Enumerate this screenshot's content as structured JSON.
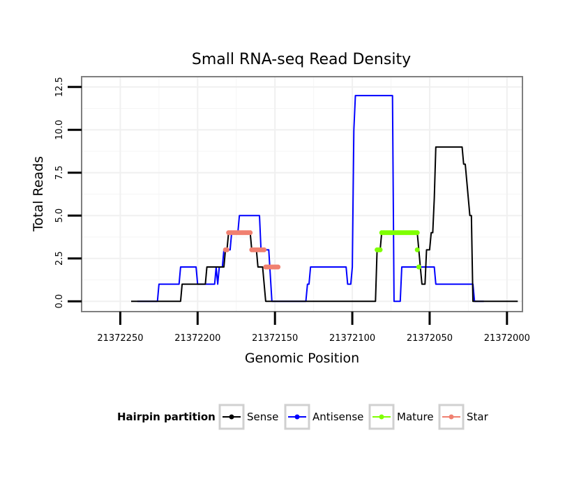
{
  "chart_data": {
    "type": "line",
    "title": "Small RNA-seq Read Density",
    "xlabel": "Genomic Position",
    "ylabel": "Total Reads",
    "x_reversed": true,
    "xlim": [
      21372275,
      21371990
    ],
    "ylim": [
      -0.6,
      13.1
    ],
    "x_ticks": [
      {
        "value": 21372250,
        "label": "21372250"
      },
      {
        "value": 21372200,
        "label": "21372200"
      },
      {
        "value": 21372150,
        "label": "21372150"
      },
      {
        "value": 21372100,
        "label": "21372100"
      },
      {
        "value": 21372050,
        "label": "21372050"
      },
      {
        "value": 21372000,
        "label": "21372000"
      }
    ],
    "y_ticks": [
      {
        "value": 0,
        "label": "0.0"
      },
      {
        "value": 2.5,
        "label": "2.5"
      },
      {
        "value": 5,
        "label": "5.0"
      },
      {
        "value": 7.5,
        "label": "7.5"
      },
      {
        "value": 10,
        "label": "10.0"
      },
      {
        "value": 12.5,
        "label": "12.5"
      }
    ],
    "grid": true,
    "legend": {
      "title": "Hairpin partition",
      "position": "bottom",
      "entries": [
        {
          "name": "Sense",
          "color": "#000000"
        },
        {
          "name": "Antisense",
          "color": "#0000FF"
        },
        {
          "name": "Mature",
          "color": "#7FFF00"
        },
        {
          "name": "Star",
          "color": "#F08070"
        }
      ]
    },
    "series": [
      {
        "name": "Antisense",
        "color": "#0000FF",
        "style": "line",
        "points": [
          [
            21372239,
            0
          ],
          [
            21372226,
            0
          ],
          [
            21372225,
            1
          ],
          [
            21372212,
            1
          ],
          [
            21372211,
            2
          ],
          [
            21372201,
            2
          ],
          [
            21372200,
            1
          ],
          [
            21372189,
            1
          ],
          [
            21372188,
            2
          ],
          [
            21372187,
            1
          ],
          [
            21372186,
            2
          ],
          [
            21372184,
            2
          ],
          [
            21372183,
            3
          ],
          [
            21372179,
            3
          ],
          [
            21372178,
            4
          ],
          [
            21372174,
            4
          ],
          [
            21372173,
            5
          ],
          [
            21372160,
            5
          ],
          [
            21372159,
            3
          ],
          [
            21372154,
            3
          ],
          [
            21372152,
            0
          ],
          [
            21372130,
            0
          ],
          [
            21372129,
            1
          ],
          [
            21372128,
            1
          ],
          [
            21372127,
            2
          ],
          [
            21372104,
            2
          ],
          [
            21372103,
            1
          ],
          [
            21372101,
            1
          ],
          [
            21372100,
            2
          ],
          [
            21372099,
            10
          ],
          [
            21372098,
            12
          ],
          [
            21372074,
            12
          ],
          [
            21372073,
            0
          ],
          [
            21372069,
            0
          ],
          [
            21372068,
            2
          ],
          [
            21372047,
            2
          ],
          [
            21372046,
            1
          ],
          [
            21372022,
            1
          ],
          [
            21372021,
            0
          ],
          [
            21372015,
            0
          ]
        ]
      },
      {
        "name": "Sense",
        "color": "#000000",
        "style": "line",
        "points": [
          [
            21372243,
            0
          ],
          [
            21372211,
            0
          ],
          [
            21372210,
            1
          ],
          [
            21372195,
            1
          ],
          [
            21372194,
            2
          ],
          [
            21372183,
            2
          ],
          [
            21372182,
            3
          ],
          [
            21372181,
            3
          ],
          [
            21372180,
            4
          ],
          [
            21372166,
            4
          ],
          [
            21372165,
            3
          ],
          [
            21372162,
            3
          ],
          [
            21372161,
            2
          ],
          [
            21372158,
            2
          ],
          [
            21372156,
            0
          ],
          [
            21372085,
            0
          ],
          [
            21372084,
            3
          ],
          [
            21372082,
            3
          ],
          [
            21372081,
            4
          ],
          [
            21372058,
            4
          ],
          [
            21372057,
            3
          ],
          [
            21372056,
            2
          ],
          [
            21372055,
            1
          ],
          [
            21372053,
            1
          ],
          [
            21372052,
            3
          ],
          [
            21372050,
            3
          ],
          [
            21372049,
            4
          ],
          [
            21372048,
            4
          ],
          [
            21372047,
            6
          ],
          [
            21372046,
            9
          ],
          [
            21372029,
            9
          ],
          [
            21372028,
            8
          ],
          [
            21372027,
            8
          ],
          [
            21372024,
            5
          ],
          [
            21372023,
            5
          ],
          [
            21372022,
            0
          ],
          [
            21371993,
            0
          ]
        ]
      },
      {
        "name": "Mature",
        "color": "#7FFF00",
        "style": "points",
        "points": [
          [
            21372084,
            3
          ],
          [
            21372083,
            3
          ],
          [
            21372082,
            3
          ],
          [
            21372081,
            4
          ],
          [
            21372080,
            4
          ],
          [
            21372079,
            4
          ],
          [
            21372078,
            4
          ],
          [
            21372077,
            4
          ],
          [
            21372076,
            4
          ],
          [
            21372075,
            4
          ],
          [
            21372074,
            4
          ],
          [
            21372073,
            4
          ],
          [
            21372072,
            4
          ],
          [
            21372071,
            4
          ],
          [
            21372070,
            4
          ],
          [
            21372069,
            4
          ],
          [
            21372068,
            4
          ],
          [
            21372067,
            4
          ],
          [
            21372066,
            4
          ],
          [
            21372065,
            4
          ],
          [
            21372064,
            4
          ],
          [
            21372063,
            4
          ],
          [
            21372062,
            4
          ],
          [
            21372061,
            4
          ],
          [
            21372060,
            4
          ],
          [
            21372059,
            4
          ],
          [
            21372058,
            4
          ],
          [
            21372058,
            3
          ],
          [
            21372057,
            2
          ]
        ]
      },
      {
        "name": "Star",
        "color": "#F08070",
        "style": "points",
        "points": [
          [
            21372182,
            3
          ],
          [
            21372181,
            3
          ],
          [
            21372180,
            4
          ],
          [
            21372179,
            4
          ],
          [
            21372178,
            4
          ],
          [
            21372177,
            4
          ],
          [
            21372176,
            4
          ],
          [
            21372175,
            4
          ],
          [
            21372174,
            4
          ],
          [
            21372173,
            4
          ],
          [
            21372172,
            4
          ],
          [
            21372171,
            4
          ],
          [
            21372170,
            4
          ],
          [
            21372169,
            4
          ],
          [
            21372168,
            4
          ],
          [
            21372167,
            4
          ],
          [
            21372166,
            4
          ],
          [
            21372165,
            3
          ],
          [
            21372164,
            3
          ],
          [
            21372163,
            3
          ],
          [
            21372162,
            3
          ],
          [
            21372161,
            3
          ],
          [
            21372160,
            3
          ],
          [
            21372159,
            3
          ],
          [
            21372158,
            3
          ],
          [
            21372157,
            3
          ],
          [
            21372156,
            2
          ],
          [
            21372155,
            2
          ],
          [
            21372154,
            2
          ],
          [
            21372153,
            2
          ],
          [
            21372152,
            2
          ],
          [
            21372151,
            2
          ],
          [
            21372150,
            2
          ],
          [
            21372149,
            2
          ],
          [
            21372148,
            2
          ]
        ]
      }
    ]
  }
}
